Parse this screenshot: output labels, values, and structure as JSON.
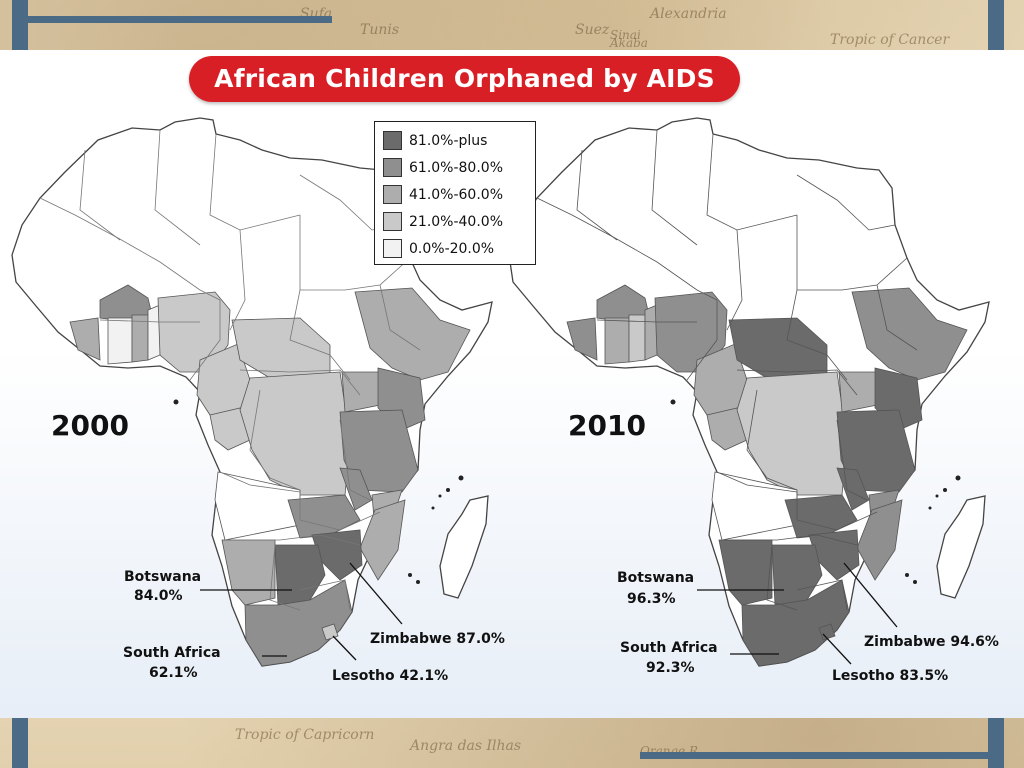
{
  "title": "African Children Orphaned by AIDS",
  "background_labels": [
    "Sufa",
    "Tunis",
    "Alexandria",
    "Suez",
    "Sinai",
    "Akaba",
    "Tropic of Cancer",
    "Tropic of Capricorn",
    "Angra das Ilhas",
    "Orange R."
  ],
  "legend": [
    {
      "label": "81.0%-plus",
      "color": "#6b6b6b"
    },
    {
      "label": "61.0%-80.0%",
      "color": "#8f8f8f"
    },
    {
      "label": "41.0%-60.0%",
      "color": "#adadad"
    },
    {
      "label": "21.0%-40.0%",
      "color": "#c9c9c9"
    },
    {
      "label": "0.0%-20.0%",
      "color": "#f2f2f2"
    }
  ],
  "colors": {
    "title_bg": "#d91f26",
    "frame": "#4a6a86",
    "country_outline": "#555555",
    "no_data": "#ffffff"
  },
  "maps": [
    {
      "year": "2000",
      "labels": {
        "botswana": {
          "name": "Botswana",
          "value": "84.0%"
        },
        "south_africa": {
          "name": "South Africa",
          "value": "62.1%"
        },
        "zimbabwe": {
          "name": "Zimbabwe",
          "value": "87.0%"
        },
        "lesotho": {
          "name": "Lesotho",
          "value": "42.1%"
        }
      }
    },
    {
      "year": "2010",
      "labels": {
        "botswana": {
          "name": "Botswana",
          "value": "96.3%"
        },
        "south_africa": {
          "name": "South Africa",
          "value": "92.3%"
        },
        "zimbabwe": {
          "name": "Zimbabwe",
          "value": "94.6%"
        },
        "lesotho": {
          "name": "Lesotho",
          "value": "83.5%"
        }
      }
    }
  ]
}
